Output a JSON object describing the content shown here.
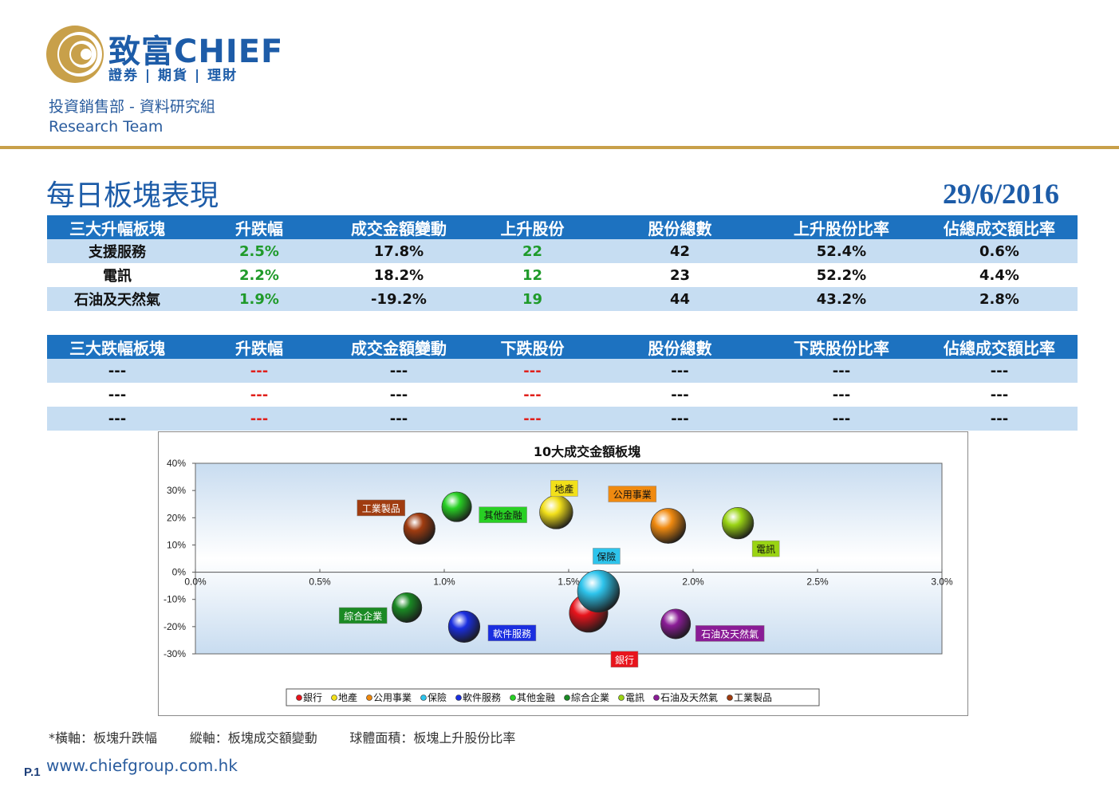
{
  "header": {
    "brand": "致富CHIEF",
    "brand_sub": "證券 | 期貨 | 理財",
    "department": "投資銷售部 - 資料研究組",
    "team": "Research Team"
  },
  "report": {
    "title": "每日板塊表現",
    "date": "29/6/2016"
  },
  "top_table": {
    "headers": [
      "三大升幅板塊",
      "升跌幅",
      "成交金額變動",
      "上升股份",
      "股份總數",
      "上升股份比率",
      "佔總成交額比率"
    ],
    "rows": [
      [
        "支援服務",
        "2.5%",
        "17.8%",
        "22",
        "42",
        "52.4%",
        "0.6%"
      ],
      [
        "電訊",
        "2.2%",
        "18.2%",
        "12",
        "23",
        "52.2%",
        "4.4%"
      ],
      [
        "石油及天然氣",
        "1.9%",
        "-19.2%",
        "19",
        "44",
        "43.2%",
        "2.8%"
      ]
    ]
  },
  "bottom_table": {
    "headers": [
      "三大跌幅板塊",
      "升跌幅",
      "成交金額變動",
      "下跌股份",
      "股份總數",
      "下跌股份比率",
      "佔總成交額比率"
    ],
    "rows": [
      [
        "---",
        "---",
        "---",
        "---",
        "---",
        "---",
        "---"
      ],
      [
        "---",
        "---",
        "---",
        "---",
        "---",
        "---",
        "---"
      ],
      [
        "---",
        "---",
        "---",
        "---",
        "---",
        "---",
        "---"
      ]
    ]
  },
  "chart_data": {
    "type": "scatter",
    "title": "10大成交金額板塊",
    "xlim": [
      0,
      3.0
    ],
    "ylim": [
      -30,
      40
    ],
    "xticks": [
      "0.0%",
      "0.5%",
      "1.0%",
      "1.5%",
      "2.0%",
      "2.5%",
      "3.0%"
    ],
    "yticks": [
      "40%",
      "30%",
      "20%",
      "10%",
      "0%",
      "-10%",
      "-20%",
      "-30%"
    ],
    "legend_position": "bottom",
    "series": [
      {
        "name": "銀行",
        "x": 1.58,
        "y": -15,
        "size": 1.1,
        "color": "#e8141c"
      },
      {
        "name": "地產",
        "x": 1.45,
        "y": 22,
        "size": 0.95,
        "color": "#f2e01a"
      },
      {
        "name": "公用事業",
        "x": 1.9,
        "y": 17,
        "size": 1.0,
        "color": "#f08a10"
      },
      {
        "name": "保險",
        "x": 1.62,
        "y": -7,
        "size": 1.2,
        "color": "#2ec4ec"
      },
      {
        "name": "軟件服務",
        "x": 1.08,
        "y": -20,
        "size": 0.9,
        "color": "#1a2ee0"
      },
      {
        "name": "其他金融",
        "x": 1.05,
        "y": 24,
        "size": 0.85,
        "color": "#28d024"
      },
      {
        "name": "綜合企業",
        "x": 0.85,
        "y": -13,
        "size": 0.85,
        "color": "#1a8a24"
      },
      {
        "name": "電訊",
        "x": 2.18,
        "y": 18,
        "size": 0.9,
        "color": "#9ad414"
      },
      {
        "name": "石油及天然氣",
        "x": 1.93,
        "y": -19,
        "size": 0.85,
        "color": "#8a1c96"
      },
      {
        "name": "工業製品",
        "x": 0.9,
        "y": 16,
        "size": 0.9,
        "color": "#a03c10"
      }
    ]
  },
  "footer": {
    "note": "*橫軸：板塊升跌幅        縱軸：板塊成交額變動        球體面積：板塊上升股份比率",
    "page": "P.1",
    "website": "www.chiefgroup.com.hk"
  }
}
